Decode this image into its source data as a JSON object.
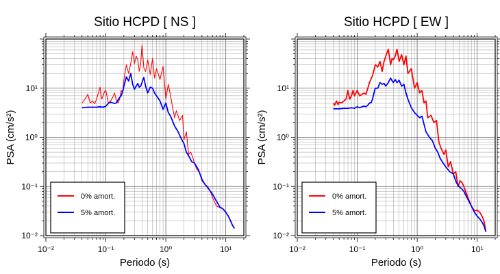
{
  "chart_data": [
    {
      "type": "line",
      "title": "Sitio HCPD [ NS ]",
      "xlabel": "Periodo (s)",
      "ylabel": "PSA (cm/s²)",
      "xscale": "log",
      "yscale": "log",
      "xlim": [
        0.01,
        20
      ],
      "ylim": [
        0.01,
        100
      ],
      "x_ticks": [
        "10⁻²",
        "10⁻¹",
        "10⁰",
        "10¹"
      ],
      "y_ticks": [
        "10⁻²",
        "10⁻¹",
        "10⁰",
        "10¹"
      ],
      "grid": true,
      "legend_position": "bottom-left",
      "series": [
        {
          "name": "0% amort.",
          "color": "#ff0000",
          "x": [
            0.04,
            0.045,
            0.05,
            0.055,
            0.06,
            0.065,
            0.07,
            0.075,
            0.08,
            0.085,
            0.09,
            0.095,
            0.1,
            0.11,
            0.12,
            0.13,
            0.14,
            0.15,
            0.16,
            0.17,
            0.18,
            0.19,
            0.2,
            0.22,
            0.24,
            0.26,
            0.28,
            0.3,
            0.32,
            0.34,
            0.36,
            0.38,
            0.4,
            0.43,
            0.46,
            0.5,
            0.55,
            0.6,
            0.65,
            0.7,
            0.8,
            0.9,
            1.0,
            1.1,
            1.2,
            1.3,
            1.4,
            1.5,
            1.7,
            1.9,
            2.0,
            2.2,
            2.4,
            2.6,
            2.8,
            3.0,
            3.3,
            3.6,
            4.0,
            4.5,
            5.0,
            5.5,
            6.0,
            7.0,
            8.0,
            9.0,
            10.0,
            11.0,
            12.0,
            13.0,
            14.0
          ],
          "values": [
            5.0,
            6.0,
            7.5,
            5.0,
            5.5,
            4.8,
            6.0,
            8.0,
            10.5,
            6.0,
            7.0,
            8.5,
            9.0,
            5.0,
            5.5,
            6.5,
            8.0,
            5.5,
            5.0,
            6.0,
            9.0,
            8.0,
            15.0,
            30.0,
            20.0,
            32.0,
            55.0,
            32.0,
            45.0,
            38.0,
            22.0,
            30.0,
            75.0,
            26.0,
            22.0,
            38.0,
            19.0,
            40.0,
            16.0,
            25.0,
            15.0,
            28.0,
            6.0,
            12.0,
            7.0,
            4.0,
            2.5,
            3.5,
            2.2,
            2.8,
            0.9,
            1.3,
            0.45,
            0.5,
            0.4,
            0.3,
            0.22,
            0.2,
            0.13,
            0.11,
            0.1,
            0.08,
            0.06,
            0.04,
            0.037,
            0.035,
            0.03,
            0.025,
            0.02,
            0.016,
            0.014
          ]
        },
        {
          "name": "5% amort.",
          "color": "#0000ff",
          "x": [
            0.04,
            0.05,
            0.06,
            0.07,
            0.08,
            0.09,
            0.1,
            0.11,
            0.12,
            0.13,
            0.14,
            0.15,
            0.16,
            0.17,
            0.18,
            0.19,
            0.2,
            0.22,
            0.24,
            0.26,
            0.28,
            0.3,
            0.32,
            0.34,
            0.36,
            0.38,
            0.4,
            0.43,
            0.46,
            0.5,
            0.55,
            0.6,
            0.65,
            0.7,
            0.8,
            0.9,
            1.0,
            1.1,
            1.2,
            1.4,
            1.6,
            1.8,
            2.0,
            2.2,
            2.4,
            2.7,
            3.0,
            3.5,
            4.0,
            4.5,
            5.0,
            6.0,
            7.0,
            8.0,
            9.0,
            10.0,
            11.0,
            12.0,
            13.0,
            14.0
          ],
          "values": [
            4.0,
            4.1,
            4.1,
            4.1,
            4.2,
            4.1,
            4.3,
            4.9,
            5.2,
            5.0,
            4.9,
            5.0,
            5.8,
            6.5,
            7.0,
            8.5,
            11.0,
            17.0,
            14.0,
            20.0,
            12.0,
            9.5,
            11.0,
            12.5,
            10.5,
            11.0,
            13.0,
            16.5,
            11.0,
            8.0,
            10.5,
            10.0,
            8.0,
            7.0,
            5.5,
            3.7,
            5.0,
            3.2,
            2.7,
            1.7,
            1.3,
            0.95,
            0.75,
            0.5,
            0.42,
            0.32,
            0.3,
            0.22,
            0.14,
            0.11,
            0.095,
            0.07,
            0.05,
            0.038,
            0.035,
            0.03,
            0.025,
            0.02,
            0.016,
            0.014
          ]
        }
      ]
    },
    {
      "type": "line",
      "title": "Sitio HCPD [ EW ]",
      "xlabel": "Periodo (s)",
      "ylabel": "PSA (cm/s²)",
      "xscale": "log",
      "yscale": "log",
      "xlim": [
        0.01,
        20
      ],
      "ylim": [
        0.01,
        100
      ],
      "x_ticks": [
        "10⁻²",
        "10⁻¹",
        "10⁰",
        "10¹"
      ],
      "y_ticks": [
        "10⁻²",
        "10⁻¹",
        "10⁰",
        "10¹"
      ],
      "grid": true,
      "legend_position": "bottom-left",
      "series": [
        {
          "name": "0% amort.",
          "color": "#ff0000",
          "x": [
            0.04,
            0.042,
            0.045,
            0.048,
            0.05,
            0.055,
            0.06,
            0.065,
            0.07,
            0.075,
            0.08,
            0.085,
            0.09,
            0.095,
            0.1,
            0.11,
            0.12,
            0.13,
            0.14,
            0.15,
            0.16,
            0.18,
            0.2,
            0.22,
            0.24,
            0.26,
            0.28,
            0.3,
            0.33,
            0.36,
            0.38,
            0.4,
            0.43,
            0.46,
            0.5,
            0.55,
            0.6,
            0.65,
            0.7,
            0.8,
            0.9,
            1.0,
            1.1,
            1.2,
            1.3,
            1.4,
            1.5,
            1.7,
            1.9,
            2.1,
            2.3,
            2.5,
            2.8,
            3.0,
            3.3,
            3.6,
            4.0,
            4.4,
            4.8,
            5.2,
            5.6,
            6.0,
            7.0,
            8.0,
            9.0,
            10.0,
            11.0,
            12.0,
            13.0,
            14.0
          ],
          "values": [
            5.0,
            4.5,
            5.5,
            4.6,
            5.2,
            5.0,
            5.5,
            6.0,
            9.0,
            6.0,
            7.0,
            9.0,
            7.0,
            8.0,
            9.0,
            7.0,
            7.5,
            8.0,
            7.5,
            10.0,
            13.0,
            18.0,
            30.0,
            27.0,
            35.0,
            22.0,
            35.0,
            45.0,
            62.0,
            30.0,
            40.0,
            38.0,
            45.0,
            62.0,
            35.0,
            48.0,
            30.0,
            45.0,
            20.0,
            25.0,
            10.0,
            13.0,
            8.0,
            9.0,
            5.0,
            5.5,
            2.5,
            2.8,
            2.0,
            2.2,
            0.8,
            0.6,
            0.45,
            0.55,
            0.25,
            0.32,
            0.18,
            0.2,
            0.1,
            0.13,
            0.12,
            0.1,
            0.06,
            0.04,
            0.032,
            0.033,
            0.03,
            0.025,
            0.02,
            0.012
          ]
        },
        {
          "name": "5% amort.",
          "color": "#0000ff",
          "x": [
            0.04,
            0.05,
            0.06,
            0.07,
            0.08,
            0.09,
            0.1,
            0.11,
            0.12,
            0.13,
            0.14,
            0.15,
            0.16,
            0.17,
            0.18,
            0.19,
            0.2,
            0.22,
            0.24,
            0.26,
            0.28,
            0.3,
            0.33,
            0.36,
            0.4,
            0.43,
            0.46,
            0.5,
            0.55,
            0.6,
            0.65,
            0.7,
            0.8,
            0.9,
            1.0,
            1.1,
            1.2,
            1.4,
            1.6,
            1.8,
            2.0,
            2.2,
            2.4,
            2.7,
            3.0,
            3.5,
            4.0,
            4.5,
            5.0,
            5.5,
            6.0,
            7.0,
            8.0,
            9.0,
            10.0,
            11.0,
            12.0,
            13.0,
            14.0
          ],
          "values": [
            3.8,
            3.8,
            3.9,
            3.9,
            4.0,
            3.9,
            4.2,
            4.0,
            4.2,
            4.3,
            4.2,
            4.5,
            5.0,
            5.0,
            6.0,
            8.0,
            10.0,
            10.0,
            13.0,
            12.0,
            12.5,
            11.0,
            13.0,
            16.0,
            13.0,
            15.0,
            13.0,
            14.5,
            11.0,
            12.0,
            8.0,
            6.0,
            4.0,
            3.2,
            2.8,
            2.5,
            2.7,
            1.3,
            1.0,
            0.85,
            0.6,
            0.5,
            0.38,
            0.3,
            0.25,
            0.2,
            0.18,
            0.12,
            0.1,
            0.09,
            0.08,
            0.055,
            0.04,
            0.03,
            0.025,
            0.022,
            0.019,
            0.016,
            0.012
          ]
        }
      ]
    }
  ]
}
